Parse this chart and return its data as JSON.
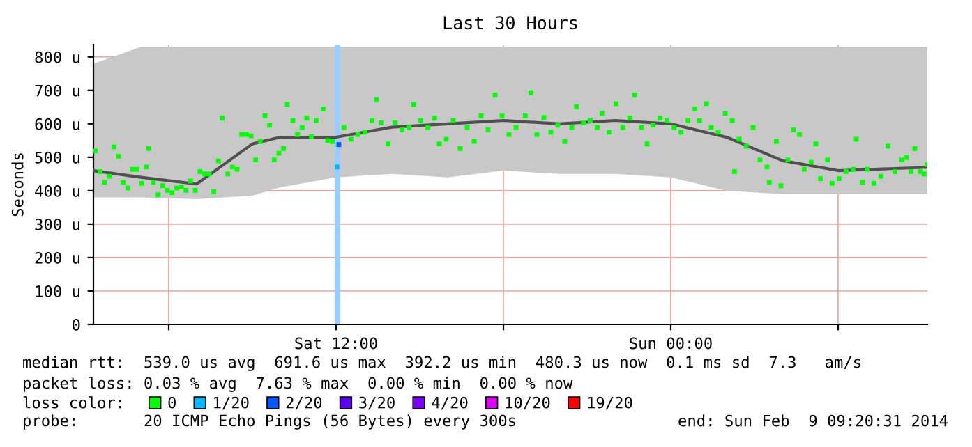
{
  "chart_data": {
    "type": "scatter",
    "title": "Last 30 Hours",
    "ylabel": "Seconds",
    "legend_title": "loss color:",
    "legend": "bottom",
    "grid": true,
    "xlim": [
      "2014-02-08T03:18",
      "2014-02-09T09:12"
    ],
    "xticks": [
      {
        "value": "2014-02-08T06:00",
        "label": null
      },
      {
        "value": "2014-02-08T12:00",
        "label": "Sat 12:00"
      },
      {
        "value": "2014-02-08T18:00",
        "label": null
      },
      {
        "value": "2014-02-09T00:00",
        "label": "Sun 00:00"
      },
      {
        "value": "2014-02-09T06:00",
        "label": null
      }
    ],
    "ylim": [
      0,
      837
    ],
    "yticks": [
      0,
      {
        "value": 100,
        "label": "100 u"
      },
      {
        "value": 200,
        "label": "200 u"
      },
      {
        "value": 300,
        "label": "300 u"
      },
      {
        "value": 400,
        "label": "400 u"
      },
      {
        "value": 500,
        "label": "500 u"
      },
      {
        "value": 600,
        "label": "600 u"
      },
      {
        "value": 700,
        "label": "700 u"
      },
      {
        "value": 800,
        "label": "800 u"
      }
    ],
    "ref_lines": [
      {
        "axis": "x",
        "value": "2014-02-08T12:03",
        "label": null,
        "color": "#99ccff"
      }
    ],
    "annotations": [
      "median rtt:  539.0 us avg  691.6 us max  392.2 us min  480.3 us now  0.1 ms sd  7.3   am/s",
      "packet loss: 0.03 % avg  7.63 % max  0.00 % min  0.00 % now",
      "probe:       20 ICMP Echo Pings (56 Bytes) every 300s",
      "end: Sun Feb  9 09:20:31 2014"
    ],
    "series": [
      {
        "type": "line",
        "color": "#505050",
        "x": [
          "2014-02-08T03:18",
          "2014-02-08T05:00",
          "2014-02-08T07:00",
          "2014-02-08T09:00",
          "2014-02-08T10:00",
          "2014-02-08T12:00",
          "2014-02-08T14:00",
          "2014-02-08T16:00",
          "2014-02-08T18:00",
          "2014-02-08T20:00",
          "2014-02-08T22:00",
          "2014-02-09T00:00",
          "2014-02-09T02:00",
          "2014-02-09T04:00",
          "2014-02-09T06:00",
          "2014-02-09T09:12"
        ],
        "values": [
          460,
          440,
          420,
          540,
          560,
          560,
          590,
          600,
          610,
          600,
          610,
          600,
          560,
          490,
          460,
          470
        ],
        "upper": [
          780,
          830,
          830,
          830,
          830,
          830,
          830,
          830,
          830,
          830,
          830,
          830,
          830,
          830,
          830,
          830
        ],
        "lower": [
          380,
          380,
          375,
          385,
          410,
          440,
          450,
          440,
          460,
          450,
          450,
          440,
          400,
          390,
          390,
          390
        ]
      },
      {
        "name": "0",
        "color": "#00ff00",
        "marker": "square",
        "x": [
          "2014-02-08T03:22",
          "2014-02-08T03:32",
          "2014-02-08T03:42",
          "2014-02-08T03:52",
          "2014-02-08T04:02",
          "2014-02-08T04:12",
          "2014-02-08T04:22",
          "2014-02-08T04:32",
          "2014-02-08T04:42",
          "2014-02-08T04:52",
          "2014-02-08T05:02",
          "2014-02-08T05:12",
          "2014-02-08T05:17",
          "2014-02-08T05:27",
          "2014-02-08T05:37",
          "2014-02-08T05:47",
          "2014-02-08T05:57",
          "2014-02-08T06:07",
          "2014-02-08T06:17",
          "2014-02-08T06:27",
          "2014-02-08T06:37",
          "2014-02-08T06:47",
          "2014-02-08T06:57",
          "2014-02-08T07:07",
          "2014-02-08T07:17",
          "2014-02-08T07:27",
          "2014-02-08T07:37",
          "2014-02-08T07:47",
          "2014-02-08T07:55",
          "2014-02-08T08:07",
          "2014-02-08T08:17",
          "2014-02-08T08:27",
          "2014-02-08T08:37",
          "2014-02-08T08:47",
          "2014-02-08T08:57",
          "2014-02-08T09:07",
          "2014-02-08T09:17",
          "2014-02-08T09:27",
          "2014-02-08T09:37",
          "2014-02-08T09:47",
          "2014-02-08T09:57",
          "2014-02-08T10:07",
          "2014-02-08T10:15",
          "2014-02-08T10:27",
          "2014-02-08T10:37",
          "2014-02-08T10:47",
          "2014-02-08T10:57",
          "2014-02-08T11:07",
          "2014-02-08T11:17",
          "2014-02-08T11:32",
          "2014-02-08T11:42",
          "2014-02-08T11:52",
          "2014-02-08T12:17",
          "2014-02-08T12:32",
          "2014-02-08T12:47",
          "2014-02-08T13:02",
          "2014-02-08T13:17",
          "2014-02-08T13:27",
          "2014-02-08T13:37",
          "2014-02-08T13:52",
          "2014-02-08T14:07",
          "2014-02-08T14:22",
          "2014-02-08T14:37",
          "2014-02-08T14:47",
          "2014-02-08T15:02",
          "2014-02-08T15:17",
          "2014-02-08T15:32",
          "2014-02-08T15:42",
          "2014-02-08T15:57",
          "2014-02-08T16:12",
          "2014-02-08T16:27",
          "2014-02-08T16:42",
          "2014-02-08T16:57",
          "2014-02-08T17:12",
          "2014-02-08T17:27",
          "2014-02-08T17:42",
          "2014-02-08T17:57",
          "2014-02-08T18:12",
          "2014-02-08T18:27",
          "2014-02-08T18:47",
          "2014-02-08T18:59",
          "2014-02-08T19:12",
          "2014-02-08T19:27",
          "2014-02-08T19:42",
          "2014-02-08T19:57",
          "2014-02-08T20:12",
          "2014-02-08T20:27",
          "2014-02-08T20:37",
          "2014-02-08T20:52",
          "2014-02-08T21:07",
          "2014-02-08T21:22",
          "2014-02-08T21:32",
          "2014-02-08T21:47",
          "2014-02-08T22:02",
          "2014-02-08T22:17",
          "2014-02-08T22:32",
          "2014-02-08T22:42",
          "2014-02-08T22:57",
          "2014-02-08T23:09",
          "2014-02-08T23:22",
          "2014-02-08T23:37",
          "2014-02-08T23:52",
          "2014-02-09T00:07",
          "2014-02-09T00:22",
          "2014-02-09T00:37",
          "2014-02-09T00:52",
          "2014-02-09T01:02",
          "2014-02-09T01:17",
          "2014-02-09T01:27",
          "2014-02-09T01:42",
          "2014-02-09T01:57",
          "2014-02-09T02:12",
          "2014-02-09T02:17",
          "2014-02-09T02:27",
          "2014-02-09T02:42",
          "2014-02-09T02:57",
          "2014-02-09T03:12",
          "2014-02-09T03:27",
          "2014-02-09T03:32",
          "2014-02-09T03:47",
          "2014-02-09T03:57",
          "2014-02-09T04:12",
          "2014-02-09T04:24",
          "2014-02-09T04:37",
          "2014-02-09T04:47",
          "2014-02-09T05:02",
          "2014-02-09T05:12",
          "2014-02-09T05:22",
          "2014-02-09T05:37",
          "2014-02-09T05:47",
          "2014-02-09T06:02",
          "2014-02-09T06:17",
          "2014-02-09T06:32",
          "2014-02-09T06:39",
          "2014-02-09T06:52",
          "2014-02-09T07:02",
          "2014-02-09T07:17",
          "2014-02-09T07:32",
          "2014-02-09T07:47",
          "2014-02-09T08:02",
          "2014-02-09T08:17",
          "2014-02-09T08:27",
          "2014-02-09T08:37",
          "2014-02-09T08:45",
          "2014-02-09T08:57",
          "2014-02-09T09:05",
          "2014-02-09T09:12"
        ],
        "values": [
          519,
          457,
          425,
          443,
          531,
          503,
          425,
          408,
          464,
          464,
          422,
          471,
          526,
          425,
          388,
          415,
          401,
          394,
          408,
          411,
          401,
          429,
          401,
          457,
          450,
          450,
          397,
          489,
          617,
          450,
          471,
          464,
          568,
          568,
          564,
          492,
          547,
          624,
          596,
          492,
          512,
          526,
          658,
          610,
          568,
          589,
          617,
          561,
          610,
          644,
          550,
          547,
          589,
          554,
          568,
          575,
          610,
          672,
          603,
          540,
          603,
          582,
          589,
          658,
          610,
          589,
          617,
          540,
          554,
          610,
          526,
          589,
          547,
          624,
          582,
          686,
          624,
          568,
          589,
          624,
          693,
          568,
          619,
          575,
          596,
          547,
          589,
          651,
          603,
          610,
          589,
          631,
          575,
          660,
          589,
          617,
          686,
          589,
          540,
          596,
          617,
          610,
          589,
          575,
          610,
          644,
          610,
          660,
          589,
          575,
          631,
          610,
          457,
          554,
          533,
          589,
          492,
          471,
          425,
          547,
          415,
          492,
          582,
          568,
          464,
          485,
          540,
          436,
          492,
          422,
          436,
          457,
          464,
          554,
          425,
          464,
          422,
          443,
          533,
          457,
          492,
          499,
          457,
          526,
          457,
          450,
          478
        ]
      },
      {
        "name": "1/20",
        "color": "#00b8ff",
        "marker": "square",
        "x": [
          "2014-02-08T12:02"
        ],
        "values": [
          471
        ]
      },
      {
        "name": "2/20",
        "color": "#0059ff",
        "marker": "square",
        "x": [
          "2014-02-08T12:06"
        ],
        "values": [
          538
        ]
      },
      {
        "name": "3/20",
        "color": "#5e00ff"
      },
      {
        "name": "4/20",
        "color": "#7e00ff"
      },
      {
        "name": "10/20",
        "color": "#dd00ff"
      },
      {
        "name": "19/20",
        "color": "#ff0000"
      }
    ]
  }
}
